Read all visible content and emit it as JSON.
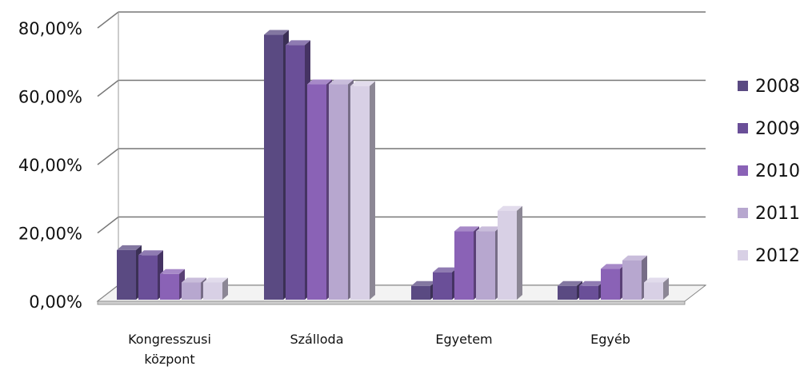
{
  "chart_data": {
    "type": "bar",
    "title": "",
    "xlabel": "",
    "ylabel": "",
    "categories": [
      "Kongresszusi központ",
      "Szálloda",
      "Egyetem",
      "Egyéb"
    ],
    "category_lines": [
      [
        "Kongresszusi",
        "központ"
      ],
      [
        "Szálloda"
      ],
      [
        "Egyetem"
      ],
      [
        "Egyéb"
      ]
    ],
    "series": [
      {
        "name": "2008",
        "color": "#5a4a82",
        "values": [
          15.0,
          78.0,
          4.5,
          4.5
        ]
      },
      {
        "name": "2009",
        "color": "#6a4f98",
        "values": [
          13.5,
          75.0,
          8.5,
          4.5
        ]
      },
      {
        "name": "2010",
        "color": "#8a62b6",
        "values": [
          8.0,
          63.5,
          20.5,
          9.5
        ]
      },
      {
        "name": "2011",
        "color": "#b7a7cf",
        "values": [
          5.5,
          63.5,
          20.5,
          12.0
        ]
      },
      {
        "name": "2012",
        "color": "#d8d0e5",
        "values": [
          5.5,
          63.0,
          26.5,
          5.5
        ]
      }
    ],
    "ylim": [
      0,
      80
    ],
    "yticks": [
      0,
      20,
      40,
      60,
      80
    ],
    "ytick_labels": [
      "0,00%",
      "20,00%",
      "40,00%",
      "60,00%",
      "80,00%"
    ],
    "grid": true,
    "legend_position": "right",
    "style": "3d-column"
  }
}
